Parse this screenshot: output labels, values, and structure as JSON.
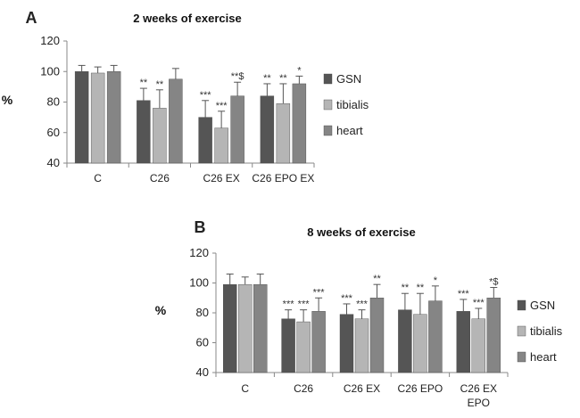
{
  "chart_data": [
    {
      "type": "bar",
      "panel": "A",
      "title": "2 weeks of exercise",
      "ylabel": "%",
      "xlabel": "",
      "ylim": [
        40,
        120
      ],
      "yticks": [
        40,
        60,
        80,
        100,
        120
      ],
      "categories": [
        [
          "C"
        ],
        [
          "C26"
        ],
        [
          "C26 EX"
        ],
        [
          "C26 EPO EX"
        ]
      ],
      "legend_position": "right",
      "series": [
        {
          "name": "GSN",
          "color": "#555555",
          "values": [
            100,
            81,
            70,
            84
          ],
          "errors": [
            4,
            8,
            11,
            8
          ],
          "annotations": [
            "",
            "**",
            "***",
            "**"
          ]
        },
        {
          "name": "tibialis",
          "color": "#b5b5b5",
          "values": [
            99,
            76,
            63,
            79
          ],
          "errors": [
            4,
            12,
            11,
            13
          ],
          "annotations": [
            "",
            "**",
            "***",
            "**"
          ]
        },
        {
          "name": "heart",
          "color": "#858585",
          "values": [
            100,
            95,
            84,
            92
          ],
          "errors": [
            4,
            7,
            9,
            5
          ],
          "annotations": [
            "",
            "",
            "**$",
            "*"
          ]
        }
      ]
    },
    {
      "type": "bar",
      "panel": "B",
      "title": "8 weeks of exercise",
      "ylabel": "%",
      "xlabel": "",
      "ylim": [
        40,
        120
      ],
      "yticks": [
        40,
        60,
        80,
        100,
        120
      ],
      "categories": [
        [
          "C"
        ],
        [
          "C26"
        ],
        [
          "C26 EX"
        ],
        [
          "C26 EPO"
        ],
        [
          "C26 EX",
          "EPO"
        ]
      ],
      "legend_position": "right",
      "series": [
        {
          "name": "GSN",
          "color": "#555555",
          "values": [
            99,
            76,
            79,
            82,
            81
          ],
          "errors": [
            7,
            6,
            7,
            11,
            8
          ],
          "annotations": [
            "",
            "***",
            "***",
            "**",
            "***"
          ]
        },
        {
          "name": "tibialis",
          "color": "#b5b5b5",
          "values": [
            99,
            74,
            76,
            79,
            76
          ],
          "errors": [
            5,
            8,
            6,
            14,
            7
          ],
          "annotations": [
            "",
            "***",
            "***",
            "**",
            "***"
          ]
        },
        {
          "name": "heart",
          "color": "#858585",
          "values": [
            99,
            81,
            90,
            88,
            90
          ],
          "errors": [
            7,
            9,
            9,
            10,
            7
          ],
          "annotations": [
            "",
            "***",
            "**",
            "*",
            "*$"
          ]
        }
      ]
    }
  ]
}
